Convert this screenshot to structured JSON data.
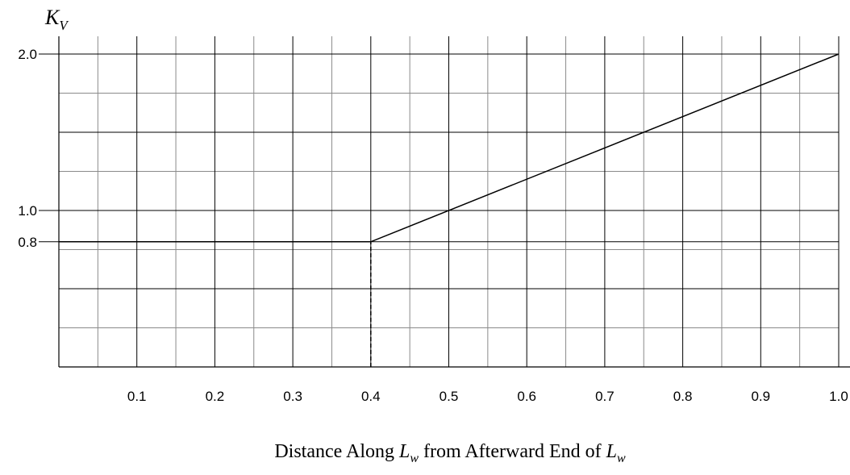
{
  "chart_data": {
    "type": "line",
    "title": "",
    "ylabel": {
      "main": "K",
      "sub": "V"
    },
    "xlabel": {
      "prefix": "Distance Along ",
      "sym1": "L",
      "sub1": "w",
      "middle": " from Afterward End of ",
      "sym2": "L",
      "sub2": "w"
    },
    "xlim": [
      0,
      1.0
    ],
    "ylim": [
      0,
      2.0
    ],
    "x_ticks": [
      0.1,
      0.2,
      0.3,
      0.4,
      0.5,
      0.6,
      0.7,
      0.8,
      0.9,
      1.0
    ],
    "x_tick_labels": [
      "0.1",
      "0.2",
      "0.3",
      "0.4",
      "0.5",
      "0.6",
      "0.7",
      "0.8",
      "0.9",
      "1.0"
    ],
    "y_ticks": [
      0.8,
      1.0,
      2.0
    ],
    "y_tick_labels": [
      "0.8",
      "1.0",
      "2.0"
    ],
    "grid": true,
    "series": [
      {
        "x": [
          0,
          0.4,
          1.0
        ],
        "y": [
          0.8,
          0.8,
          2.0
        ]
      }
    ],
    "reference_lines": [
      {
        "style": "dashed",
        "x": [
          0.4,
          0.4
        ],
        "y": [
          0,
          0.8
        ]
      }
    ]
  }
}
